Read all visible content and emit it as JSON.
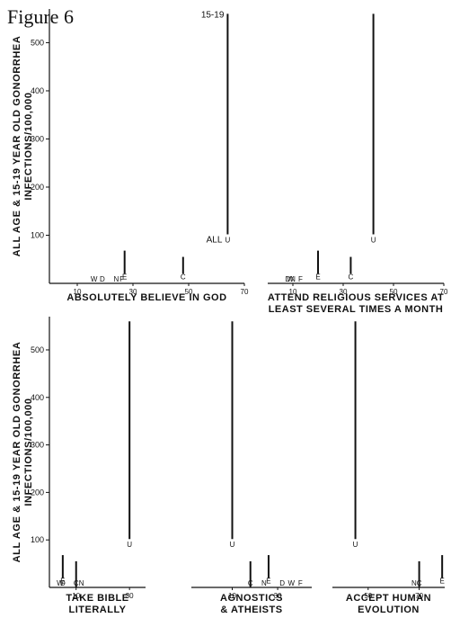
{
  "figure_title": "Figure 6",
  "chart_data": [
    {
      "type": "scatter",
      "ylabel_lines": [
        "ALL AGE & 15-19 YEAR OLD GONORRHEA",
        "INFECTIONS/100,000"
      ],
      "yticks": [
        100,
        200,
        300,
        400,
        500
      ],
      "ylim": [
        0,
        570
      ],
      "xlabel_lines": [
        "ABSOLUTELY BELIEVE IN GOD"
      ],
      "xlim": [
        0,
        70
      ],
      "xticks": [
        10,
        30,
        50,
        70
      ],
      "low_markers": [
        {
          "label": "W",
          "x": 16,
          "y": 0
        },
        {
          "label": "D",
          "x": 19,
          "y": 0
        },
        {
          "label": "N",
          "x": 24,
          "y": 0
        },
        {
          "label": "F",
          "x": 26,
          "y": 0
        },
        {
          "label": "E",
          "x": 27,
          "y": 20
        },
        {
          "label": "C",
          "x": 48,
          "y": 20
        }
      ],
      "mid_bars": [
        {
          "x": 27,
          "y0": 20,
          "y1": 68
        },
        {
          "x": 48,
          "y0": 20,
          "y1": 55
        }
      ],
      "u_point": {
        "label": "U",
        "x": 64,
        "all_age": 100,
        "teen": 560,
        "all_label": "ALL",
        "teen_label": "15-19"
      }
    },
    {
      "type": "scatter",
      "xlabel_lines": [
        "ATTEND RELIGIOUS SERVICES AT",
        "LEAST SEVERAL TIMES A MONTH"
      ],
      "xlim": [
        0,
        70
      ],
      "xticks": [
        10,
        30,
        50,
        70
      ],
      "low_markers": [
        {
          "label": "D",
          "x": 8,
          "y": 0
        },
        {
          "label": "W",
          "x": 9,
          "y": 0
        },
        {
          "label": "N",
          "x": 10,
          "y": 0
        },
        {
          "label": "F",
          "x": 13,
          "y": 0
        },
        {
          "label": "E",
          "x": 20,
          "y": 20
        },
        {
          "label": "C",
          "x": 33,
          "y": 20
        }
      ],
      "mid_bars": [
        {
          "x": 20,
          "y0": 20,
          "y1": 68
        },
        {
          "x": 33,
          "y0": 20,
          "y1": 55
        }
      ],
      "u_point": {
        "label": "U",
        "x": 42,
        "all_age": 100,
        "teen": 560
      }
    },
    {
      "type": "scatter",
      "ylabel_lines": [
        "ALL AGE & 15-19 YEAR OLD GONORRHEA",
        "INFECTIONS/100,000"
      ],
      "yticks": [
        100,
        200,
        300,
        400,
        500
      ],
      "ylim": [
        0,
        570
      ],
      "xlabel_lines": [
        "TAKE BIBLE",
        "LITERALLY"
      ],
      "xlim": [
        0,
        36
      ],
      "xticks": [
        10,
        30
      ],
      "low_markers": [
        {
          "label": "W",
          "x": 4,
          "y": 0
        },
        {
          "label": "D",
          "x": 5,
          "y": 0
        },
        {
          "label": "E",
          "x": 5,
          "y": 20
        },
        {
          "label": "C",
          "x": 10,
          "y": 0
        },
        {
          "label": "N",
          "x": 12,
          "y": 0
        }
      ],
      "mid_bars": [
        {
          "x": 5,
          "y0": 20,
          "y1": 68
        },
        {
          "x": 10,
          "y0": 0,
          "y1": 55
        }
      ],
      "u_point": {
        "label": "U",
        "x": 30,
        "all_age": 100,
        "teen": 560
      }
    },
    {
      "type": "scatter",
      "xlabel_lines": [
        "AGNOSTICS",
        "& ATHEISTS"
      ],
      "xlim": [
        -8,
        45
      ],
      "xticks": [
        10,
        30
      ],
      "low_markers": [
        {
          "label": "C",
          "x": 18,
          "y": 0
        },
        {
          "label": "N",
          "x": 24,
          "y": 0
        },
        {
          "label": "E",
          "x": 26,
          "y": 20
        },
        {
          "label": "D",
          "x": 32,
          "y": 0
        },
        {
          "label": "W",
          "x": 36,
          "y": 0
        },
        {
          "label": "F",
          "x": 40,
          "y": 0
        }
      ],
      "mid_bars": [
        {
          "x": 18,
          "y0": 0,
          "y1": 55
        },
        {
          "x": 26,
          "y0": 20,
          "y1": 68
        }
      ],
      "u_point": {
        "label": "U",
        "x": 10,
        "all_age": 100,
        "teen": 560
      }
    },
    {
      "type": "scatter",
      "xlabel_lines": [
        "ACCEPT HUMAN",
        "EVOLUTION"
      ],
      "xlim": [
        36,
        80
      ],
      "xticks": [
        50,
        70
      ],
      "low_markers": [
        {
          "label": "N",
          "x": 68,
          "y": 0
        },
        {
          "label": "C",
          "x": 70,
          "y": 0
        },
        {
          "label": "E",
          "x": 79,
          "y": 20
        }
      ],
      "mid_bars": [
        {
          "x": 70,
          "y0": 0,
          "y1": 55
        },
        {
          "x": 79,
          "y0": 20,
          "y1": 68
        }
      ],
      "u_point": {
        "label": "U",
        "x": 45,
        "all_age": 100,
        "teen": 560
      }
    }
  ]
}
